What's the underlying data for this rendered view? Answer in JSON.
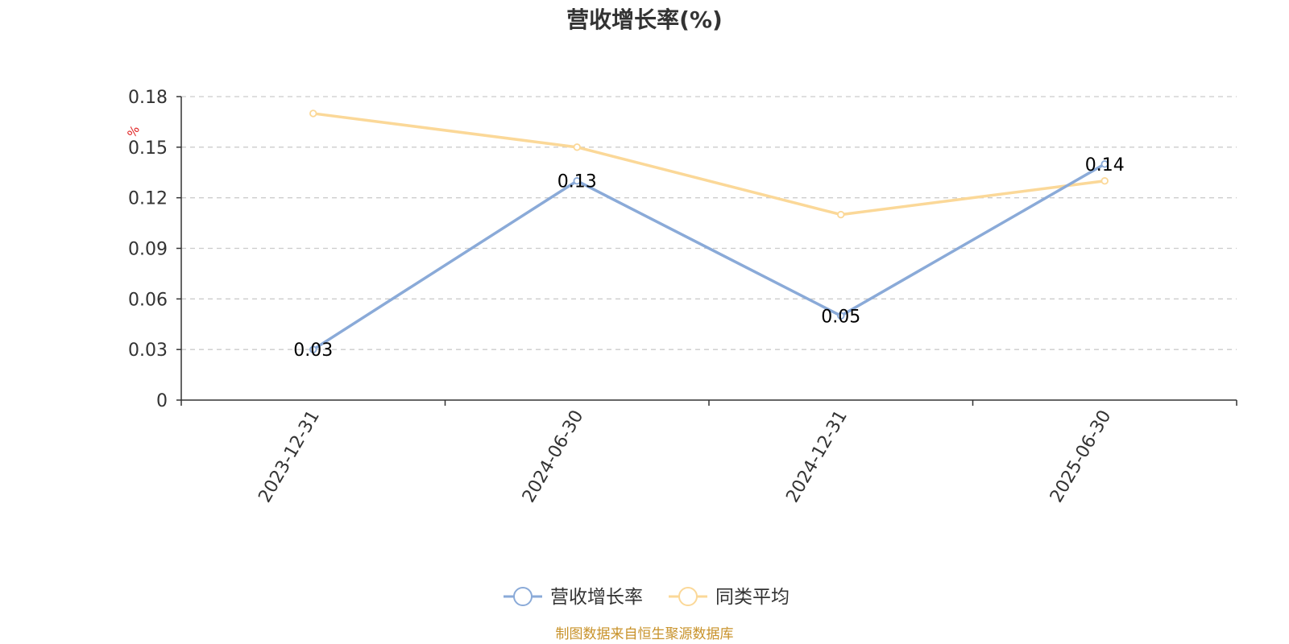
{
  "chart_data": {
    "type": "line",
    "title": "营收增长率(%)",
    "ylabel": "%",
    "categories": [
      "2023-12-31",
      "2024-06-30",
      "2024-12-31",
      "2025-06-30"
    ],
    "series": [
      {
        "name": "营收增长率",
        "values": [
          0.03,
          0.13,
          0.05,
          0.14
        ],
        "color": "#8aaad8",
        "show_labels": true
      },
      {
        "name": "同类平均",
        "values": [
          0.17,
          0.15,
          0.11,
          0.13
        ],
        "color": "#fbd898",
        "show_labels": false
      }
    ],
    "ylim": [
      0,
      0.18
    ],
    "yticks": [
      "0",
      "0.03",
      "0.06",
      "0.09",
      "0.12",
      "0.15",
      "0.18"
    ],
    "grid": true,
    "legend_position": "bottom-center"
  },
  "source": "制图数据来自恒生聚源数据库",
  "colors": {
    "unit_label": "#e02020",
    "source_text": "#c8922a",
    "axis": "#333333",
    "grid": "#cccccc"
  }
}
